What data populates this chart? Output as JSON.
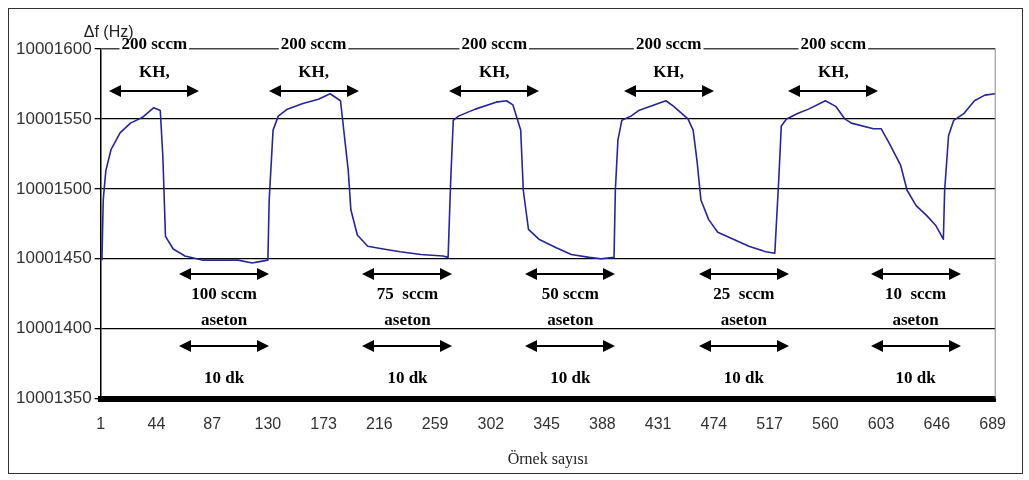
{
  "chart_data": {
    "type": "line",
    "xlabel": "Örnek sayısı",
    "ylabel": "Δf (Hz)",
    "xlim": [
      1,
      691
    ],
    "xticks": [
      1,
      44,
      87,
      130,
      173,
      216,
      259,
      302,
      345,
      388,
      431,
      474,
      517,
      560,
      603,
      646,
      689
    ],
    "ylim": [
      10001350,
      10001600
    ],
    "yticks": [
      10001350,
      10001400,
      10001450,
      10001500,
      10001550,
      10001600
    ],
    "grid": "y",
    "legend": false,
    "marker": "none",
    "line_style": "solid",
    "series": [
      {
        "color": "#262696",
        "x": [
          2,
          3,
          5,
          9,
          16,
          24,
          33,
          42,
          47,
          49,
          51,
          57,
          66,
          80,
          107,
          118,
          130,
          131,
          134,
          138,
          145,
          157,
          169,
          178,
          186,
          192,
          194,
          199,
          207,
          219,
          232,
          248,
          265,
          269,
          271,
          273,
          277,
          290,
          306,
          314,
          319,
          325,
          327,
          331,
          339,
          352,
          364,
          378,
          387,
          397,
          398,
          400,
          403,
          410,
          416,
          431,
          437,
          443,
          454,
          458,
          461,
          464,
          470,
          477,
          489,
          501,
          514,
          521,
          524,
          526,
          530,
          539,
          547,
          560,
          568,
          575,
          580,
          597,
          603,
          609,
          618,
          623,
          630,
          638,
          645,
          651,
          652,
          655,
          659,
          667,
          675,
          683,
          691
        ],
        "values": [
          10001449,
          10001492,
          10001513,
          10001528,
          10001540,
          10001547,
          10001551,
          10001558,
          10001556,
          10001523,
          10001466,
          10001457,
          10001452,
          10001449,
          10001449,
          10001447,
          10001449,
          10001492,
          10001542,
          10001552,
          10001557,
          10001561,
          10001564,
          10001568,
          10001563,
          10001513,
          10001485,
          10001467,
          10001459,
          10001457,
          10001455,
          10001453,
          10001452,
          10001451,
          10001506,
          10001549,
          10001552,
          10001557,
          10001562,
          10001563,
          10001560,
          10001542,
          10001499,
          10001471,
          10001464,
          10001458,
          10001453,
          10001451,
          10001450,
          10001451,
          10001499,
          10001535,
          10001549,
          10001552,
          10001556,
          10001561,
          10001563,
          10001559,
          10001550,
          10001542,
          10001520,
          10001492,
          10001478,
          10001469,
          10001464,
          10001459,
          10001455,
          10001454,
          10001506,
          10001545,
          10001550,
          10001554,
          10001557,
          10001563,
          10001559,
          10001550,
          10001547,
          10001543,
          10001543,
          10001533,
          10001517,
          10001499,
          10001488,
          10001481,
          10001474,
          10001464,
          10001499,
          10001538,
          10001549,
          10001554,
          10001563,
          10001567,
          10001568
        ]
      }
    ],
    "annotations": [
      "200 sccm",
      "KH,",
      "100 sccm",
      "aseton",
      "10 dk",
      "200 sccm",
      "KH,",
      "75  sccm",
      "aseton",
      "10 dk",
      "200 sccm",
      "KH,",
      "50 sccm",
      "aseton",
      "10 dk",
      "200 sccm",
      "KH,",
      "25  sccm",
      "aseton",
      "10 dk",
      "200 sccm",
      "KH,",
      "10  sccm",
      "aseton",
      "10 dk"
    ]
  }
}
